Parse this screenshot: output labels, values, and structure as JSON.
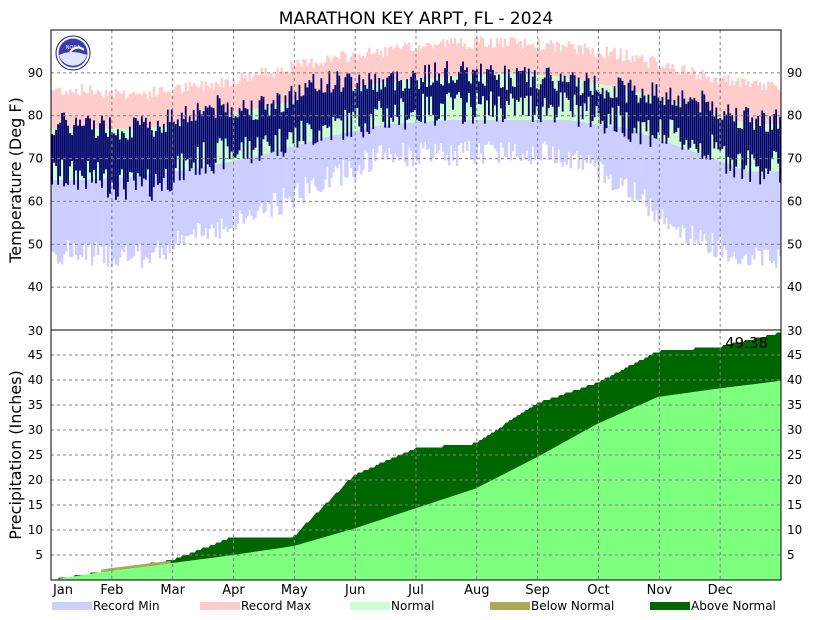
{
  "chart_data": {
    "type": "area",
    "title": "MARATHON KEY ARPT, FL - 2024",
    "months": [
      "Jan",
      "Feb",
      "Mar",
      "Apr",
      "May",
      "Jun",
      "Jul",
      "Aug",
      "Sep",
      "Oct",
      "Nov",
      "Dec"
    ],
    "temperature": {
      "ylabel": "Temperature (Deg F)",
      "ylim": [
        30,
        100
      ],
      "yticks": [
        40,
        50,
        60,
        70,
        80,
        90
      ],
      "monthly_record_max": [
        86,
        85,
        87,
        90,
        93,
        95,
        97,
        97,
        96,
        94,
        90,
        87
      ],
      "monthly_normal_high": [
        77,
        77,
        79,
        82,
        85,
        88,
        89,
        90,
        89,
        86,
        82,
        78
      ],
      "monthly_normal_low": [
        65,
        66,
        68,
        71,
        75,
        78,
        79,
        79,
        79,
        77,
        72,
        67
      ],
      "monthly_record_min": [
        48,
        47,
        53,
        58,
        65,
        71,
        71,
        72,
        71,
        63,
        52,
        47
      ],
      "monthly_observed_high": [
        78,
        77,
        82,
        82,
        88,
        88,
        90,
        89,
        88,
        86,
        84,
        79
      ],
      "monthly_observed_low": [
        66,
        63,
        70,
        73,
        77,
        80,
        82,
        82,
        82,
        78,
        74,
        68
      ],
      "grid": true
    },
    "precipitation": {
      "ylabel": "Precipitation (Inches)",
      "ylim": [
        0,
        50
      ],
      "yticks": [
        5,
        10,
        15,
        20,
        25,
        30,
        35,
        40,
        45
      ],
      "top_tick_label": "30",
      "normal_cumulative_monthly": [
        0,
        1.9,
        3.4,
        5.0,
        6.8,
        10.3,
        14.3,
        18.3,
        24.5,
        31.2,
        36.6,
        38.3,
        39.8
      ],
      "observed_cumulative_monthly": [
        0,
        2.0,
        4.0,
        8.6,
        8.7,
        21.0,
        26.3,
        27.3,
        35.3,
        39.4,
        45.7,
        46.6,
        49.38
      ],
      "annual_total": 49.38,
      "annual_total_label": "49.38",
      "grid": true
    },
    "legend": [
      {
        "label": "Record Min",
        "color": "#cccfff"
      },
      {
        "label": "Record Max",
        "color": "#ffcccb"
      },
      {
        "label": "Normal",
        "color": "#ccffcc"
      },
      {
        "label": "Below Normal",
        "color": "#aaaa55"
      },
      {
        "label": "Above Normal",
        "color": "#006600"
      }
    ],
    "colors": {
      "record_min": "#cccfff",
      "record_max": "#ffcccb",
      "normal": "#ccffcc",
      "observed": "#00006b",
      "precip_normal": "#7fff7f",
      "below_normal": "#aaaa55",
      "above_normal": "#006600",
      "grid": "#808080"
    },
    "logo": "noaa-logo"
  }
}
